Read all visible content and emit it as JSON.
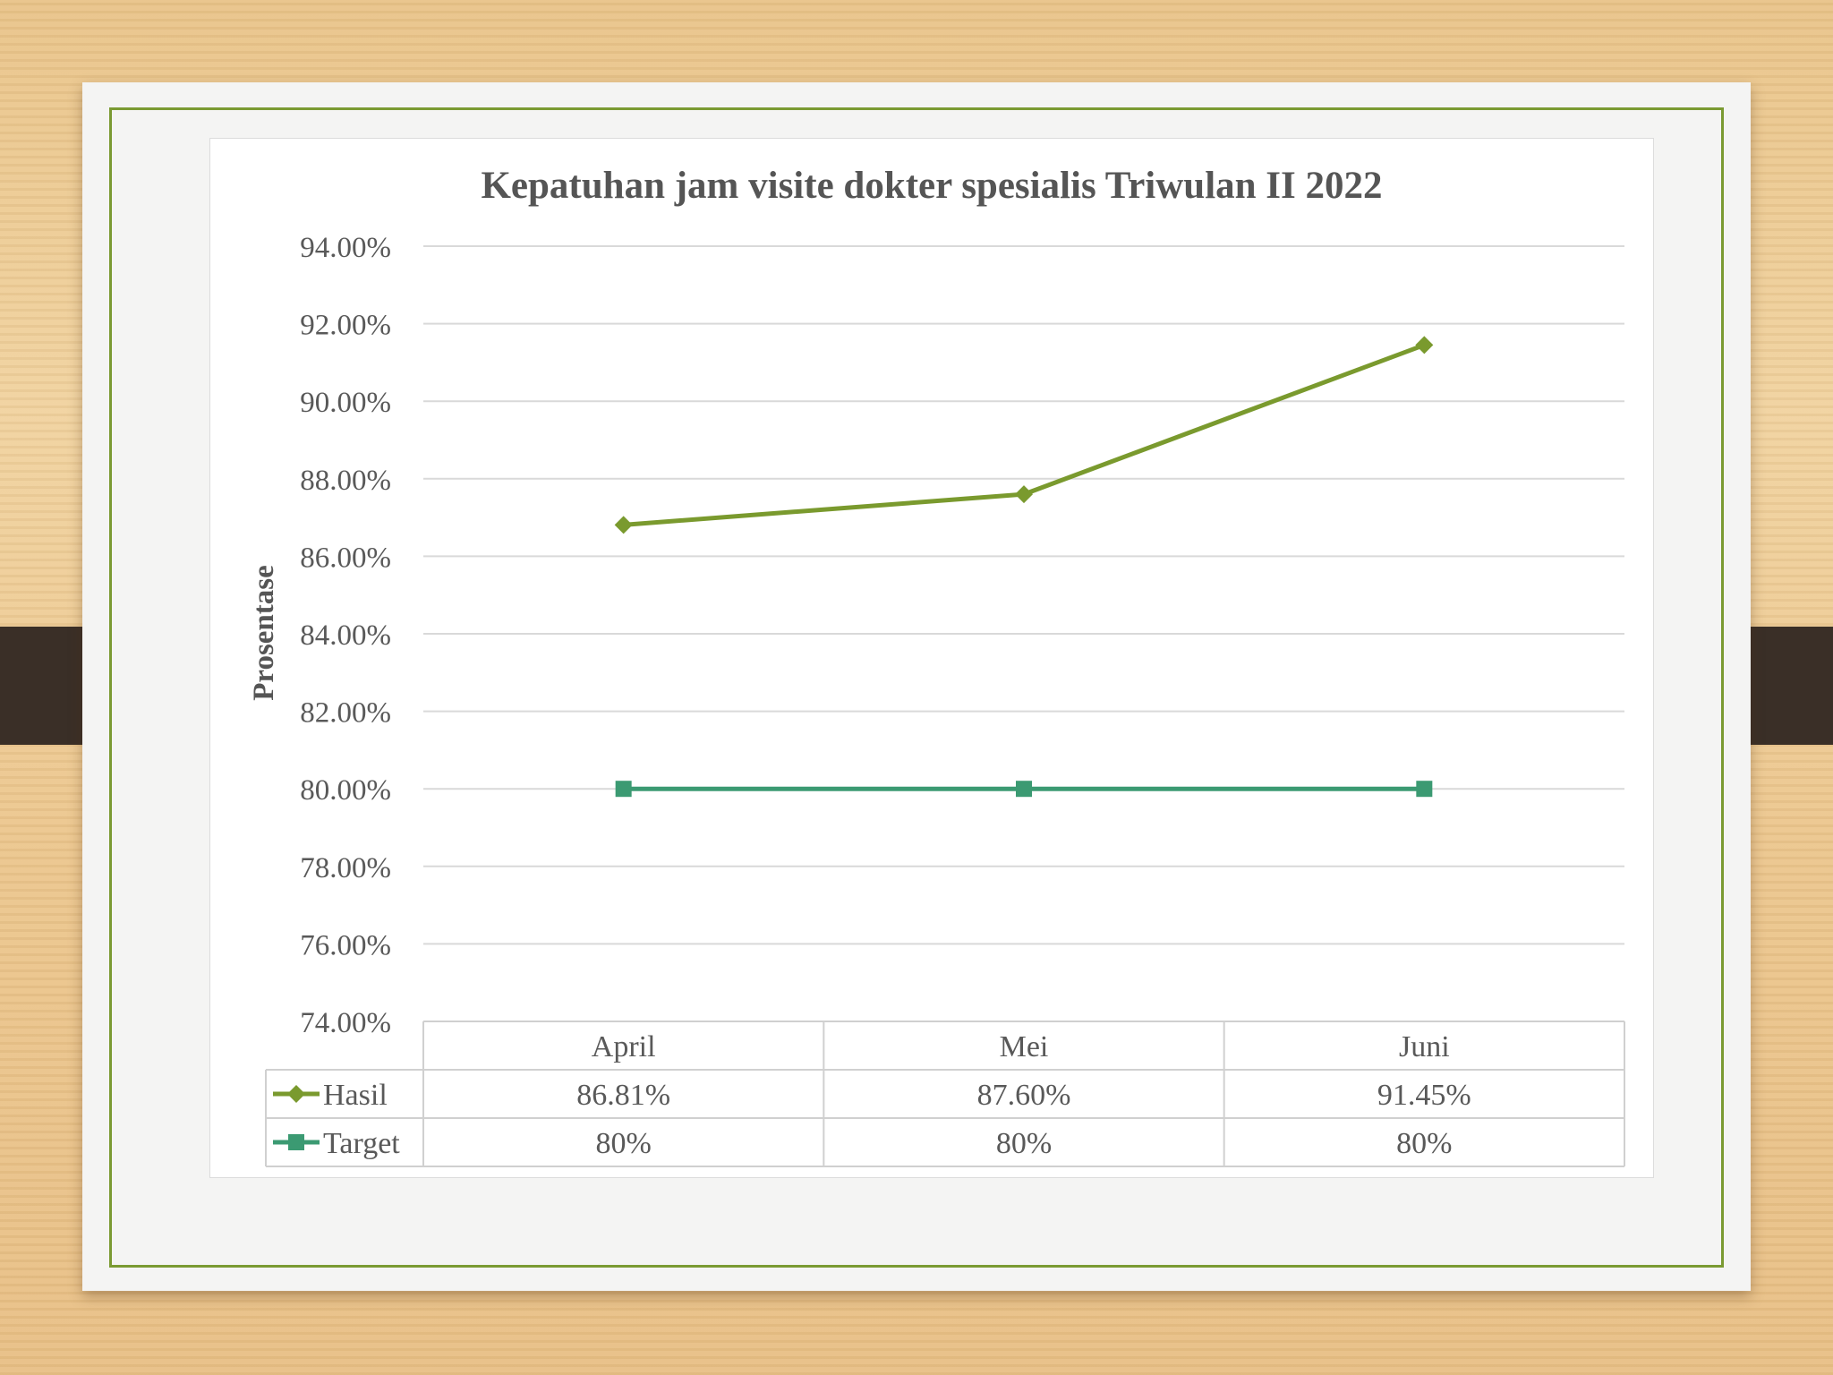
{
  "chart_data": {
    "type": "line",
    "title": "Kepatuhan jam visite dokter spesialis Triwulan II 2022",
    "ylabel": "Prosentase",
    "ylim": [
      74,
      94
    ],
    "y_tick_step": 2,
    "y_ticks": [
      "94.00%",
      "92.00%",
      "90.00%",
      "88.00%",
      "86.00%",
      "84.00%",
      "82.00%",
      "80.00%",
      "78.00%",
      "76.00%",
      "74.00%"
    ],
    "categories": [
      "April",
      "Mei",
      "Juni"
    ],
    "grid": true,
    "legend": "data-table",
    "series": [
      {
        "name": "Hasil",
        "values": [
          86.81,
          87.6,
          91.45
        ],
        "labels": [
          "86.81%",
          "87.60%",
          "91.45%"
        ],
        "color": "#7a9a2e",
        "marker": "diamond"
      },
      {
        "name": "Target",
        "values": [
          80,
          80,
          80
        ],
        "labels": [
          "80%",
          "80%",
          "80%"
        ],
        "color": "#3b9a72",
        "marker": "square"
      }
    ]
  }
}
